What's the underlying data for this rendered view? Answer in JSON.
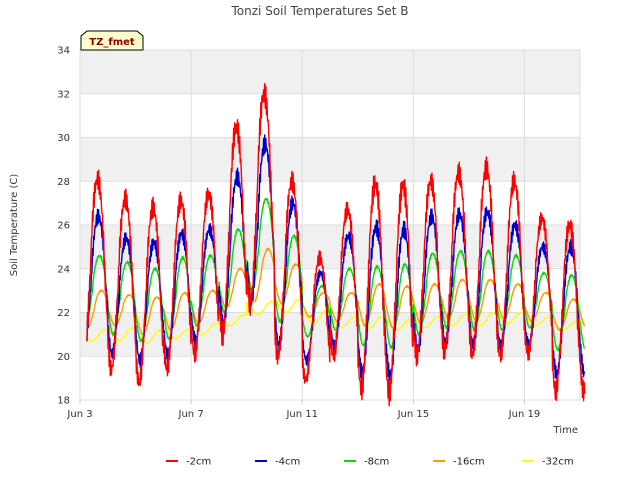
{
  "chart_data": {
    "type": "line",
    "title": "Tonzi Soil Temperatures Set B",
    "xlabel": "Time",
    "ylabel": "Soil Temperature (C)",
    "site_tag": "TZ_fmet",
    "xlim": [
      3.0,
      21.0
    ],
    "ylim": [
      18,
      34
    ],
    "y_ticks": [
      18,
      20,
      22,
      24,
      26,
      28,
      30,
      32,
      34
    ],
    "x_ticks": [
      {
        "value": 3,
        "label": "Jun 3"
      },
      {
        "value": 7,
        "label": "Jun 7"
      },
      {
        "value": 11,
        "label": "Jun 11"
      },
      {
        "value": 15,
        "label": "Jun 15"
      },
      {
        "value": 19,
        "label": "Jun 19"
      }
    ],
    "grid": true,
    "legend_position": "bottom",
    "x_unit": "day of June",
    "series": [
      {
        "name": "-2cm",
        "color": "#ff0000",
        "daily_min": [
          19.8,
          19.4,
          18.8,
          19.4,
          20.1,
          21.0,
          22.4,
          20.0,
          18.9,
          20.0,
          18.5,
          18.3,
          20.0,
          20.2,
          20.1,
          20.0,
          20.1,
          18.4
        ],
        "daily_max": [
          28.1,
          27.2,
          26.8,
          27.1,
          27.4,
          30.5,
          32.0,
          28.0,
          24.5,
          26.7,
          27.9,
          27.8,
          28.0,
          28.4,
          28.6,
          28.0,
          26.3,
          26.0
        ]
      },
      {
        "name": "-4cm",
        "color": "#0000cc",
        "daily_min": [
          20.5,
          20.1,
          19.8,
          20.0,
          20.7,
          21.5,
          22.6,
          20.5,
          19.8,
          20.4,
          19.2,
          19.1,
          20.3,
          20.6,
          20.5,
          20.4,
          20.5,
          19.2
        ],
        "daily_max": [
          26.4,
          25.4,
          25.2,
          25.6,
          25.8,
          28.2,
          29.7,
          27.0,
          23.8,
          25.5,
          25.9,
          25.8,
          26.4,
          26.5,
          26.6,
          26.0,
          25.0,
          25.0
        ]
      },
      {
        "name": "-8cm",
        "color": "#00dd00",
        "daily_min": [
          21.4,
          21.0,
          20.7,
          20.8,
          21.4,
          22.0,
          23.0,
          21.6,
          20.9,
          21.2,
          20.5,
          20.4,
          21.0,
          21.3,
          21.2,
          21.2,
          21.3,
          20.3
        ],
        "daily_max": [
          24.6,
          24.3,
          24.0,
          24.5,
          24.6,
          25.8,
          27.2,
          25.5,
          23.2,
          24.0,
          24.1,
          24.2,
          24.7,
          24.8,
          24.8,
          24.6,
          23.8,
          23.7
        ]
      },
      {
        "name": "-16cm",
        "color": "#ff9900",
        "daily_min": [
          21.3,
          21.4,
          21.0,
          21.2,
          21.5,
          22.2,
          22.5,
          22.4,
          21.8,
          21.6,
          21.4,
          21.3,
          21.5,
          21.7,
          21.6,
          21.7,
          21.6,
          21.2
        ],
        "daily_max": [
          23.0,
          22.8,
          22.7,
          22.9,
          23.0,
          24.0,
          24.9,
          24.2,
          22.9,
          22.9,
          23.3,
          23.2,
          23.3,
          23.5,
          23.5,
          23.3,
          22.9,
          22.6
        ]
      },
      {
        "name": "-32cm",
        "color": "#ffff00",
        "daily_min": [
          20.7,
          20.7,
          20.6,
          20.8,
          21.0,
          21.4,
          21.9,
          22.0,
          21.5,
          21.3,
          21.3,
          21.2,
          21.3,
          21.4,
          21.4,
          21.5,
          21.4,
          21.2
        ],
        "daily_max": [
          21.2,
          21.3,
          21.2,
          21.2,
          21.5,
          21.9,
          22.5,
          22.6,
          22.1,
          21.8,
          21.8,
          21.7,
          21.8,
          21.9,
          22.0,
          22.0,
          21.8,
          21.6
        ]
      }
    ]
  }
}
